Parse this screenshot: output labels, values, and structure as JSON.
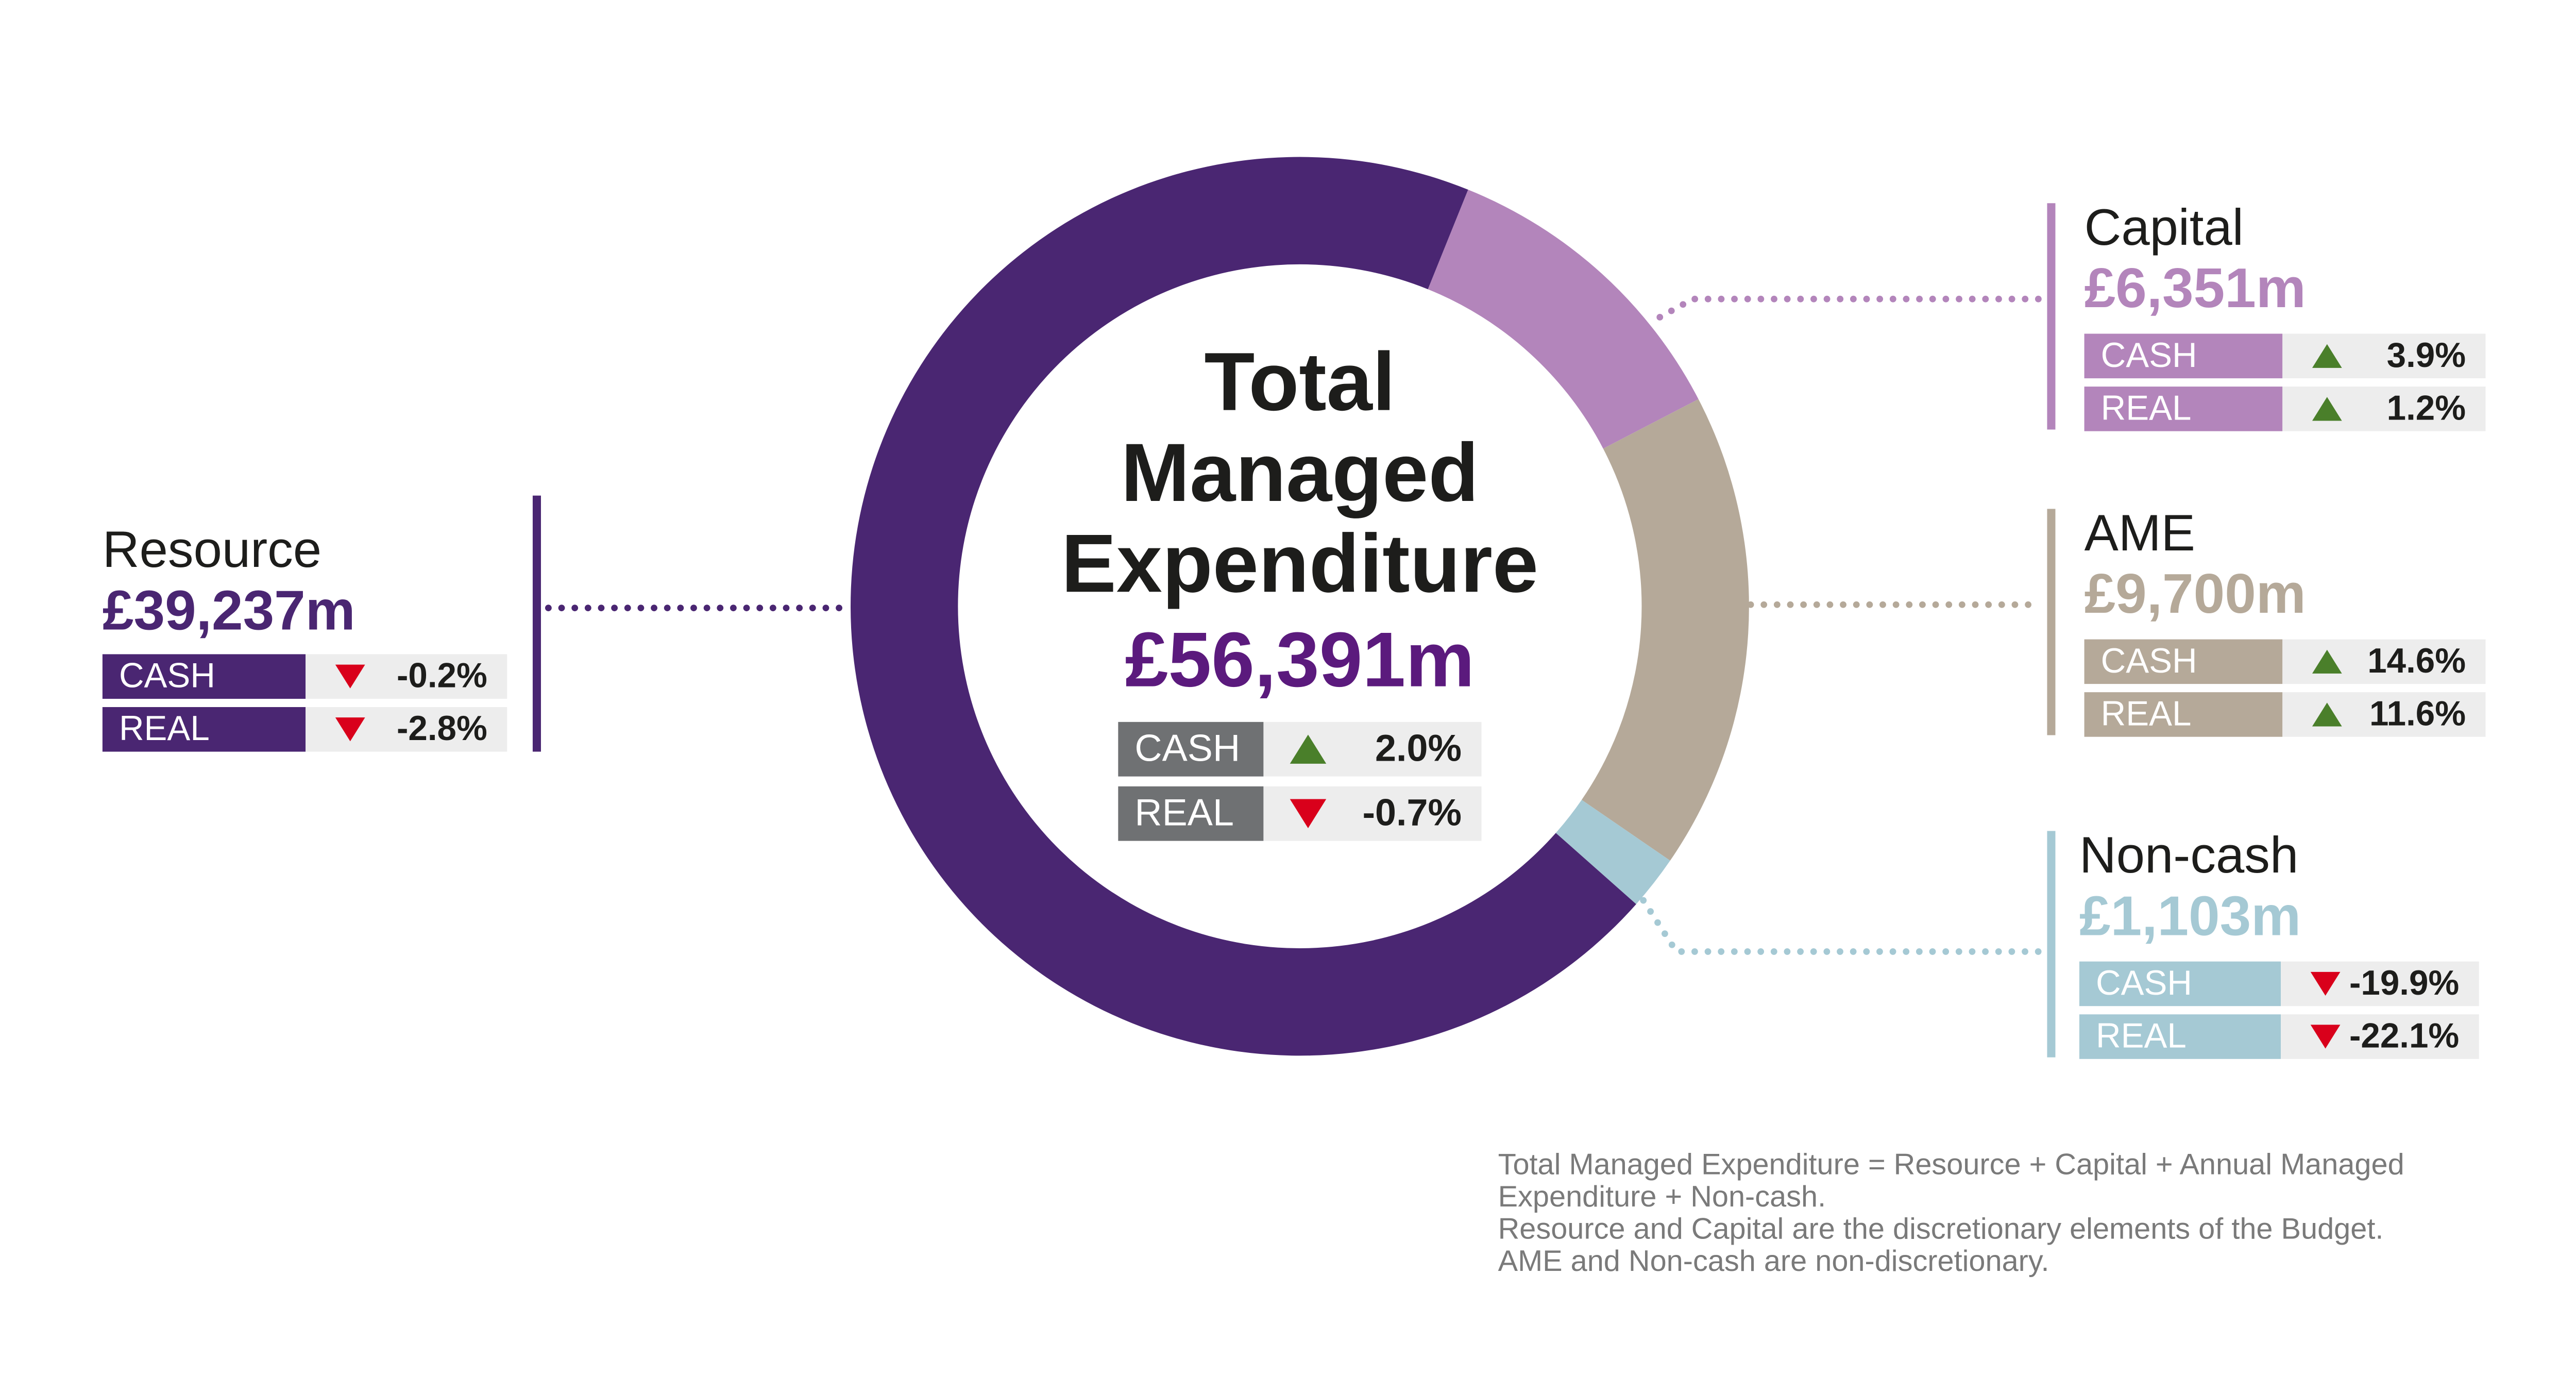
{
  "chart_data": {
    "type": "donut",
    "title": [
      "Total",
      "Managed",
      "Expenditure"
    ],
    "total": 56391,
    "total_label": "£56,391m",
    "total_cash_change": 2.0,
    "total_cash_change_label": "2.0%",
    "total_real_change": -0.7,
    "total_real_change_label": "-0.7%",
    "change_labels": [
      "CASH",
      "REAL"
    ],
    "categories": [
      "Resource",
      "Capital",
      "AME",
      "Non-cash"
    ],
    "values": [
      39237,
      6351,
      9700,
      1103
    ],
    "value_labels": [
      "£39,237m",
      "£6,351m",
      "£9,700m",
      "£1,103m"
    ],
    "colors": [
      "#4a2672",
      "#b385bb",
      "#b5a999",
      "#a5c9d4"
    ],
    "cash_change": [
      -0.2,
      3.9,
      14.6,
      -19.9
    ],
    "cash_change_labels": [
      "-0.2%",
      "3.9%",
      "14.6%",
      "-19.9%"
    ],
    "real_change": [
      -2.8,
      1.2,
      11.6,
      -22.1
    ],
    "real_change_labels": [
      "-2.8%",
      "1.2%",
      "11.6%",
      "-22.1%"
    ],
    "notes": [
      "Total Managed Expenditure = Resource + Capital + Annual Managed",
      "Expenditure + Non-cash.",
      "Resource and Capital are the discretionary elements of the Budget.",
      "AME and Non-cash are non-discretionary."
    ]
  }
}
